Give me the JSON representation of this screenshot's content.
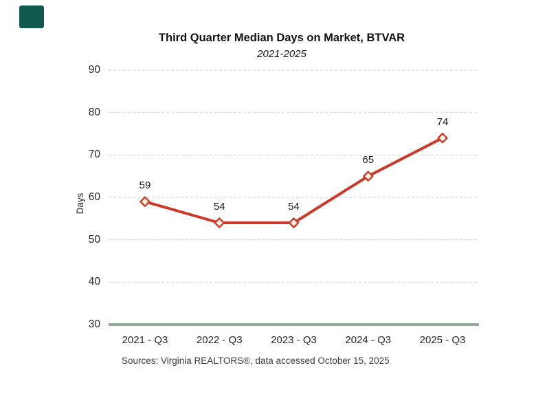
{
  "brand": {
    "square_color": "#0F594E"
  },
  "chart": {
    "title": "Third Quarter Median Days on Market, BTVAR",
    "subtitle": "2021-2025",
    "source": "Sources: Virginia REALTORS®, data accessed October 15, 2025"
  },
  "chart_data": {
    "type": "line",
    "categories": [
      "2021 - Q3",
      "2022 - Q3",
      "2023 - Q3",
      "2024 - Q3",
      "2025 - Q3"
    ],
    "values": [
      59,
      54,
      54,
      65,
      74
    ],
    "title": "Third Quarter Median Days on Market, BTVAR",
    "subtitle": "2021-2025",
    "xlabel": "",
    "ylabel": "Days",
    "ylim": [
      30,
      90
    ],
    "yticks": [
      30,
      40,
      50,
      60,
      70,
      80,
      90
    ],
    "grid": "horizontal-dashed",
    "legend": "none",
    "data_labels": true,
    "marker": "diamond",
    "colors": {
      "line": "#CD3929",
      "marker_fill": "#F7F1DE",
      "marker_stroke": "#CD3929",
      "baseline": "#92A89B",
      "gridline": "#D8D8D8"
    }
  }
}
